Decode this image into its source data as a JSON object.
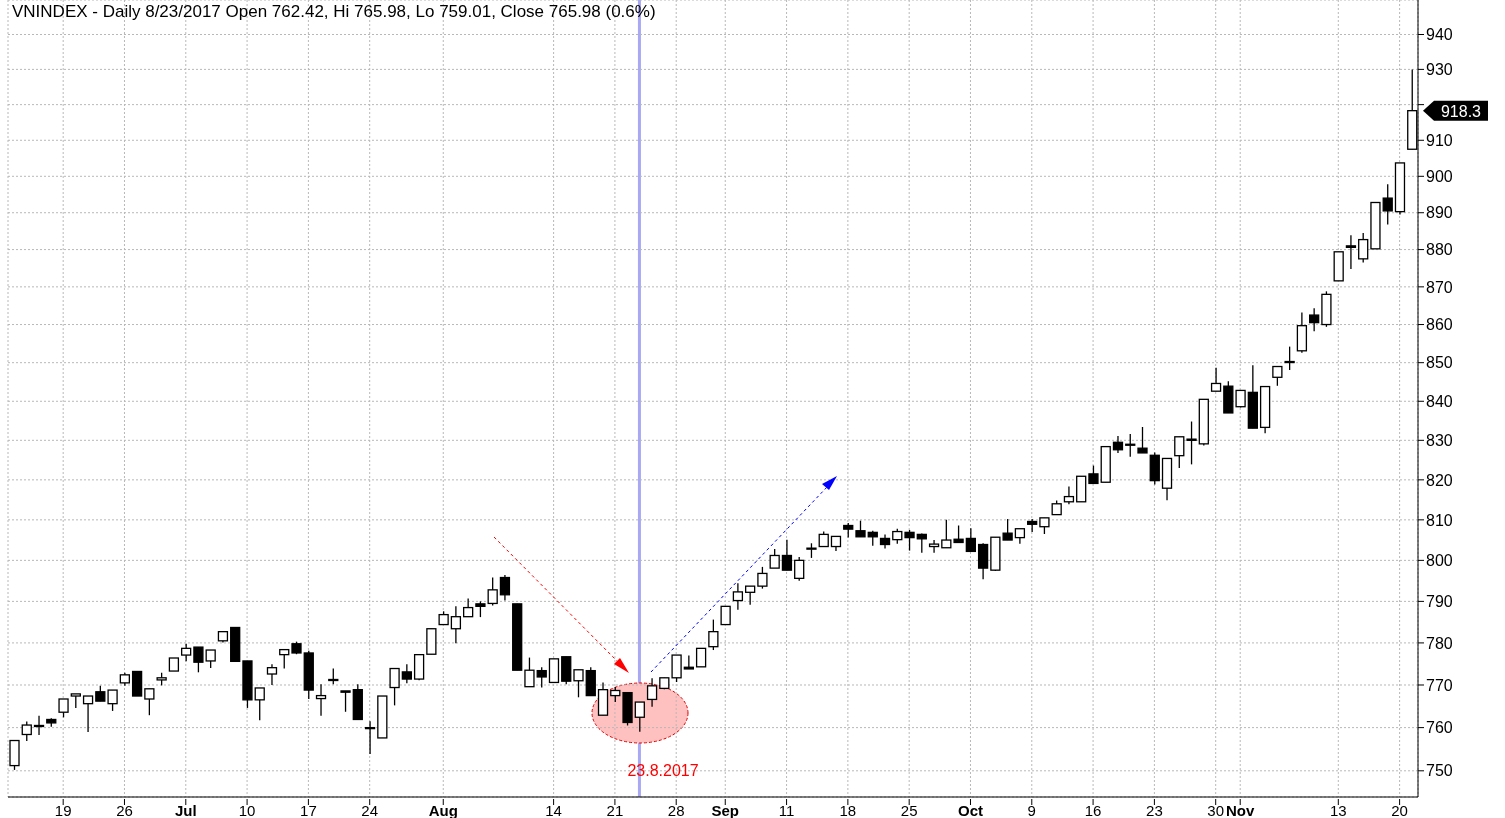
{
  "chart_data": {
    "type": "candlestick",
    "title": "VNINDEX - Daily 8/23/2017 Open 762.42, Hi 765.98, Lo 759.01, Close 765.98 (0.6%)",
    "categories": [
      null,
      null,
      null,
      null,
      "19",
      null,
      null,
      null,
      null,
      "26",
      null,
      null,
      null,
      null,
      "Jul",
      null,
      null,
      null,
      null,
      "10",
      null,
      null,
      null,
      null,
      "17",
      null,
      null,
      null,
      null,
      "24",
      null,
      null,
      null,
      null,
      null,
      "Aug",
      null,
      null,
      null,
      null,
      null,
      null,
      null,
      null,
      "14",
      null,
      null,
      null,
      null,
      "21",
      null,
      null,
      null,
      null,
      "28",
      null,
      null,
      null,
      "Sep",
      null,
      null,
      null,
      null,
      "11",
      null,
      null,
      null,
      null,
      "18",
      null,
      null,
      null,
      null,
      "25",
      null,
      null,
      null,
      null,
      "Oct",
      null,
      null,
      null,
      null,
      "9",
      null,
      null,
      null,
      null,
      "16",
      null,
      null,
      null,
      null,
      "23",
      null,
      null,
      null,
      null,
      "30",
      null,
      "Nov",
      null,
      null,
      null,
      null,
      null,
      null,
      null,
      "13",
      null,
      null,
      null,
      null,
      "20",
      null
    ],
    "ohlc": [
      [
        751.2,
        757.0,
        750.2,
        757.0
      ],
      [
        758.4,
        761.4,
        756.9,
        760.6
      ],
      [
        760.5,
        762.8,
        758.3,
        760.5
      ],
      [
        761.9,
        762.2,
        760.2,
        761.1
      ],
      [
        763.6,
        766.7,
        762.4,
        766.7
      ],
      [
        767.4,
        767.9,
        764.6,
        767.9
      ],
      [
        765.6,
        767.4,
        759.0,
        767.4
      ],
      [
        768.4,
        769.8,
        766.2,
        766.2
      ],
      [
        765.6,
        768.8,
        763.9,
        768.8
      ],
      [
        770.5,
        772.9,
        769.8,
        772.4
      ],
      [
        773.2,
        773.2,
        767.4,
        767.4
      ],
      [
        766.7,
        769.1,
        762.9,
        769.1
      ],
      [
        771.2,
        772.9,
        769.9,
        771.7
      ],
      [
        773.3,
        776.4,
        773.3,
        776.4
      ],
      [
        777.1,
        779.8,
        775.6,
        778.7
      ],
      [
        779.0,
        779.0,
        773.0,
        775.4
      ],
      [
        775.7,
        778.3,
        774.0,
        778.3
      ],
      [
        780.5,
        782.7,
        780.1,
        782.7
      ],
      [
        783.7,
        783.7,
        775.6,
        775.6
      ],
      [
        775.7,
        775.7,
        764.6,
        766.5
      ],
      [
        766.5,
        769.3,
        761.7,
        769.3
      ],
      [
        772.6,
        774.9,
        770.0,
        774.1
      ],
      [
        777.2,
        778.4,
        773.9,
        778.4
      ],
      [
        779.8,
        780.3,
        777.3,
        777.6
      ],
      [
        777.6,
        778.1,
        766.7,
        768.8
      ],
      [
        766.8,
        770.2,
        762.8,
        767.5
      ],
      [
        771.3,
        773.9,
        770.2,
        771.3
      ],
      [
        768.6,
        768.6,
        763.7,
        768.3
      ],
      [
        768.9,
        770.2,
        761.9,
        761.9
      ],
      [
        759.9,
        761.5,
        753.9,
        760.0
      ],
      [
        757.6,
        767.4,
        757.6,
        767.4
      ],
      [
        769.4,
        773.9,
        765.2,
        773.9
      ],
      [
        773.1,
        774.9,
        770.4,
        771.4
      ],
      [
        771.4,
        777.2,
        771.1,
        777.2
      ],
      [
        777.3,
        783.4,
        777.3,
        783.4
      ],
      [
        784.4,
        787.6,
        784.4,
        786.8
      ],
      [
        783.4,
        788.8,
        779.9,
        786.3
      ],
      [
        786.3,
        790.7,
        786.3,
        788.5
      ],
      [
        789.4,
        790.0,
        786.2,
        788.8
      ],
      [
        789.5,
        795.8,
        789.0,
        792.8
      ],
      [
        795.8,
        796.4,
        790.2,
        791.6
      ],
      [
        789.4,
        789.4,
        773.5,
        773.5
      ],
      [
        769.6,
        776.5,
        769.6,
        773.5
      ],
      [
        773.4,
        774.2,
        769.4,
        771.9
      ],
      [
        770.6,
        776.2,
        770.6,
        776.2
      ],
      [
        776.7,
        776.7,
        770.2,
        770.9
      ],
      [
        771.0,
        773.6,
        767.1,
        773.6
      ],
      [
        773.4,
        774.2,
        767.5,
        767.5
      ],
      [
        762.9,
        770.6,
        762.9,
        768.9
      ],
      [
        767.5,
        769.5,
        766.0,
        768.7
      ],
      [
        768.2,
        768.2,
        760.5,
        761.2
      ],
      [
        762.42,
        765.98,
        759.01,
        765.98
      ],
      [
        766.6,
        771.6,
        764.9,
        769.8
      ],
      [
        769.2,
        771.7,
        769.0,
        771.7
      ],
      [
        771.7,
        777.1,
        770.7,
        777.1
      ],
      [
        774.2,
        777.0,
        773.8,
        773.8
      ],
      [
        774.3,
        778.7,
        774.3,
        778.7
      ],
      [
        779.1,
        785.6,
        778.3,
        782.7
      ],
      [
        784.4,
        788.8,
        784.4,
        788.8
      ],
      [
        790.2,
        794.4,
        788.0,
        792.3
      ],
      [
        792.2,
        793.7,
        789.2,
        793.7
      ],
      [
        793.7,
        798.4,
        793.1,
        796.8
      ],
      [
        798.1,
        802.8,
        798.1,
        801.2
      ],
      [
        801.2,
        805.1,
        797.6,
        797.6
      ],
      [
        795.6,
        800.8,
        795.0,
        800.0
      ],
      [
        803.0,
        804.2,
        800.6,
        803.0
      ],
      [
        803.4,
        807.1,
        803.4,
        806.4
      ],
      [
        803.4,
        805.9,
        802.3,
        805.9
      ],
      [
        808.6,
        809.2,
        805.6,
        807.7
      ],
      [
        807.3,
        809.8,
        805.8,
        805.8
      ],
      [
        806.9,
        807.3,
        803.6,
        805.8
      ],
      [
        805.4,
        806.4,
        802.9,
        803.9
      ],
      [
        805.1,
        807.8,
        804.1,
        807.1
      ],
      [
        806.9,
        807.5,
        802.4,
        805.6
      ],
      [
        806.4,
        806.6,
        801.9,
        805.3
      ],
      [
        803.4,
        805.0,
        801.9,
        804.0
      ],
      [
        803.1,
        810.0,
        803.1,
        805.0
      ],
      [
        805.2,
        808.6,
        804.4,
        804.4
      ],
      [
        805.4,
        807.9,
        802.2,
        802.2
      ],
      [
        803.9,
        804.2,
        795.4,
        798.1
      ],
      [
        797.6,
        805.7,
        797.4,
        805.7
      ],
      [
        806.7,
        810.2,
        805.0,
        805.0
      ],
      [
        805.6,
        807.8,
        804.1,
        807.8
      ],
      [
        809.6,
        810.2,
        807.0,
        808.9
      ],
      [
        808.3,
        810.5,
        806.5,
        810.5
      ],
      [
        811.3,
        814.8,
        811.3,
        814.0
      ],
      [
        814.5,
        818.3,
        813.9,
        815.8
      ],
      [
        814.5,
        820.9,
        814.5,
        820.9
      ],
      [
        821.5,
        823.6,
        819.1,
        819.1
      ],
      [
        819.4,
        828.4,
        819.4,
        828.4
      ],
      [
        829.5,
        831.1,
        826.8,
        827.6
      ],
      [
        829.0,
        831.6,
        825.8,
        829.0
      ],
      [
        828.0,
        833.4,
        826.8,
        826.8
      ],
      [
        826.2,
        826.9,
        818.8,
        819.8
      ],
      [
        817.9,
        825.4,
        814.9,
        825.4
      ],
      [
        826.1,
        830.9,
        823.0,
        830.9
      ],
      [
        830.3,
        834.8,
        823.9,
        830.0
      ],
      [
        829.1,
        840.5,
        828.7,
        840.5
      ],
      [
        842.6,
        848.7,
        842.6,
        844.6
      ],
      [
        843.9,
        845.2,
        837.0,
        837.0
      ],
      [
        838.6,
        842.8,
        838.4,
        842.8
      ],
      [
        842.3,
        849.3,
        833.1,
        833.1
      ],
      [
        833.3,
        843.8,
        831.8,
        843.8
      ],
      [
        846.2,
        849.0,
        844.0,
        849.0
      ],
      [
        850.3,
        854.2,
        848.1,
        850.3
      ],
      [
        853.1,
        863.2,
        852.6,
        859.7
      ],
      [
        862.5,
        864.3,
        858.2,
        860.5
      ],
      [
        860.0,
        868.8,
        859.4,
        868.0
      ],
      [
        871.6,
        879.4,
        871.6,
        879.4
      ],
      [
        881.0,
        883.9,
        874.8,
        880.6
      ],
      [
        877.5,
        884.5,
        876.5,
        882.7
      ],
      [
        880.2,
        892.8,
        880.2,
        892.8
      ],
      [
        894.0,
        897.8,
        886.8,
        890.5
      ],
      [
        890.3,
        903.7,
        889.5,
        903.7
      ],
      [
        907.5,
        930.0,
        907.5,
        918.3
      ]
    ],
    "ylim": [
      744,
      950
    ],
    "yticks": [
      750,
      760,
      770,
      780,
      790,
      800,
      810,
      820,
      830,
      840,
      850,
      860,
      870,
      880,
      890,
      900,
      910,
      {
        "value": 920,
        "label": null
      },
      930,
      940
    ],
    "log": true,
    "grid": true,
    "annotations": [
      "23.8.2017",
      "918.3"
    ]
  }
}
